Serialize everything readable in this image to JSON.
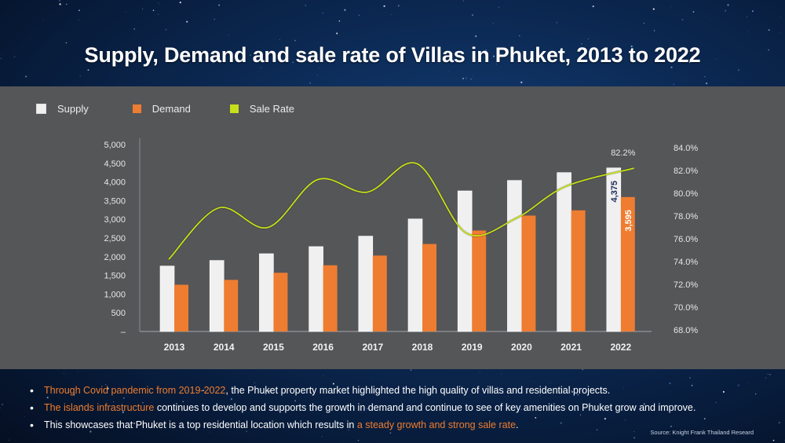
{
  "title": "Supply, Demand and sale rate of Villas in Phuket, 2013 to 2022",
  "legend": [
    {
      "label": "Supply",
      "color": "#f0f0f0"
    },
    {
      "label": "Demand",
      "color": "#ee7d31"
    },
    {
      "label": "Sale Rate",
      "color": "#c6e019"
    }
  ],
  "chart_data": {
    "type": "bar",
    "title": "Supply, Demand and sale rate of Villas in Phuket, 2013 to 2022",
    "categories": [
      "2013",
      "2014",
      "2015",
      "2016",
      "2017",
      "2018",
      "2019",
      "2020",
      "2021",
      "2022"
    ],
    "series": [
      {
        "name": "Supply",
        "type": "bar",
        "axis": "left",
        "color": "#f0f0f0",
        "values": [
          1750,
          1900,
          2080,
          2270,
          2550,
          3010,
          3760,
          4040,
          4250,
          4375
        ]
      },
      {
        "name": "Demand",
        "type": "bar",
        "axis": "left",
        "color": "#ee7d31",
        "values": [
          1250,
          1380,
          1570,
          1770,
          2030,
          2340,
          2700,
          3100,
          3240,
          3595
        ]
      },
      {
        "name": "Sale Rate",
        "type": "line",
        "axis": "right",
        "color": "#c6e019",
        "values": [
          74.2,
          78.7,
          77.0,
          81.2,
          80.1,
          82.6,
          76.5,
          77.8,
          80.6,
          82.2
        ]
      }
    ],
    "left_axis": {
      "ylim": [
        0,
        5000
      ],
      "ticks": [
        "–",
        "500",
        "1,000",
        "1,500",
        "2,000",
        "2,500",
        "3,000",
        "3,500",
        "4,000",
        "4,500",
        "5,000"
      ]
    },
    "right_axis": {
      "ylim": [
        68,
        84
      ],
      "ticks": [
        "68.0%",
        "70.0%",
        "72.0%",
        "74.0%",
        "76.0%",
        "78.0%",
        "80.0%",
        "82.0%",
        "84.0%"
      ]
    },
    "data_labels": {
      "supply_2022": "4,375",
      "demand_2022": "3,595",
      "sale_rate_2022": "82.2%"
    },
    "legend_position": "top-left",
    "grid": false,
    "xlabel": "",
    "ylabel": ""
  },
  "bullets": [
    {
      "highlight": "Through Covid pandemic  from 2019-2022",
      "text": ", the Phuket property market highlighted the high quality of villas and residential projects."
    },
    {
      "highlight": "The islands infrastructure",
      "text": " continues to develop and supports the growth in demand and continue to see of key amenities on Phuket grow and improve."
    },
    {
      "text": "This showcases that Phuket is a top residential location which results in ",
      "highlight": "a steady growth and strong sale rate",
      "tail": "."
    }
  ],
  "source": "Source: Knight Frank Thailand Researd"
}
